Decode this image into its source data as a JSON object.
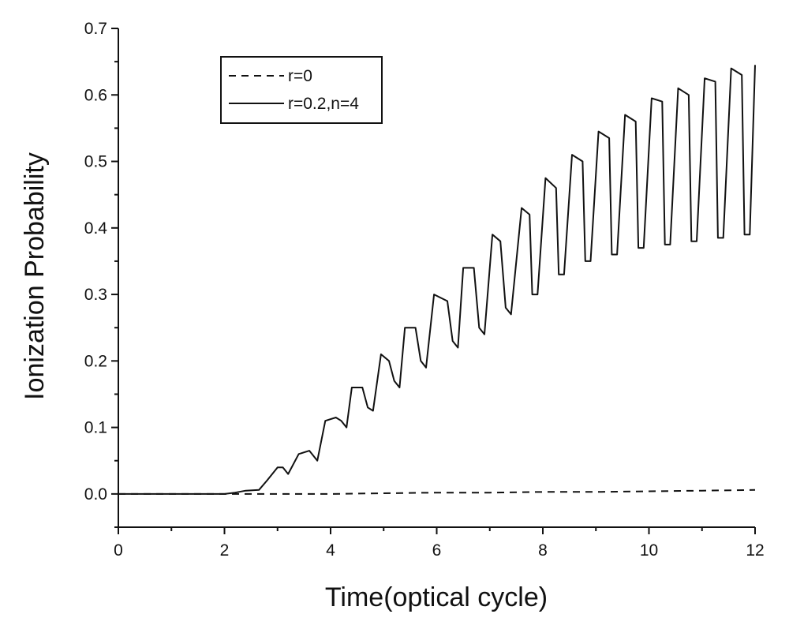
{
  "chart_data": {
    "type": "line",
    "title": "",
    "xlabel": "Time(optical cycle)",
    "ylabel": "Ionization Probability",
    "xlim": [
      0,
      12
    ],
    "ylim": [
      -0.05,
      0.7
    ],
    "xticks": [
      0,
      2,
      4,
      6,
      8,
      10,
      12
    ],
    "yticks": [
      0.0,
      0.1,
      0.2,
      0.3,
      0.4,
      0.5,
      0.6,
      0.7
    ],
    "xtick_labels": [
      "0",
      "2",
      "4",
      "6",
      "8",
      "10",
      "12"
    ],
    "ytick_labels": [
      "0.0",
      "0.1",
      "0.2",
      "0.3",
      "0.4",
      "0.5",
      "0.6",
      "0.7"
    ],
    "grid": false,
    "legend_position": "top-left",
    "series": [
      {
        "name": "r=0",
        "style": "dashed",
        "color": "#111111",
        "x": [
          0,
          2,
          3,
          4,
          5,
          6,
          7,
          8,
          9,
          10,
          11,
          12
        ],
        "y": [
          0.0,
          0.0,
          0.0,
          0.0,
          0.001,
          0.002,
          0.002,
          0.003,
          0.003,
          0.004,
          0.005,
          0.006
        ]
      },
      {
        "name": "r=0.2,n=4",
        "style": "solid",
        "color": "#111111",
        "x": [
          0,
          2.0,
          2.2,
          2.4,
          2.65,
          2.8,
          3.0,
          3.1,
          3.2,
          3.4,
          3.6,
          3.7,
          3.75,
          3.9,
          4.1,
          4.2,
          4.3,
          4.4,
          4.6,
          4.7,
          4.8,
          4.95,
          5.1,
          5.2,
          5.3,
          5.4,
          5.6,
          5.7,
          5.8,
          5.95,
          6.2,
          6.3,
          6.4,
          6.5,
          6.7,
          6.8,
          6.9,
          7.05,
          7.2,
          7.3,
          7.4,
          7.6,
          7.75,
          7.8,
          7.9,
          8.05,
          8.25,
          8.3,
          8.4,
          8.55,
          8.75,
          8.8,
          8.9,
          9.05,
          9.25,
          9.3,
          9.4,
          9.55,
          9.75,
          9.8,
          9.9,
          10.05,
          10.25,
          10.3,
          10.4,
          10.55,
          10.75,
          10.8,
          10.9,
          11.05,
          11.25,
          11.3,
          11.4,
          11.55,
          11.75,
          11.8,
          11.9,
          12.0
        ],
        "y": [
          0.0,
          0.0,
          0.002,
          0.005,
          0.006,
          0.02,
          0.04,
          0.04,
          0.03,
          0.06,
          0.065,
          0.055,
          0.05,
          0.11,
          0.115,
          0.11,
          0.1,
          0.16,
          0.16,
          0.13,
          0.125,
          0.21,
          0.2,
          0.17,
          0.16,
          0.25,
          0.25,
          0.2,
          0.19,
          0.3,
          0.29,
          0.23,
          0.22,
          0.34,
          0.34,
          0.25,
          0.24,
          0.39,
          0.38,
          0.28,
          0.27,
          0.43,
          0.42,
          0.3,
          0.3,
          0.475,
          0.46,
          0.33,
          0.33,
          0.51,
          0.5,
          0.35,
          0.35,
          0.545,
          0.535,
          0.36,
          0.36,
          0.57,
          0.56,
          0.37,
          0.37,
          0.595,
          0.59,
          0.375,
          0.375,
          0.61,
          0.6,
          0.38,
          0.38,
          0.625,
          0.62,
          0.385,
          0.385,
          0.64,
          0.63,
          0.39,
          0.39,
          0.645
        ]
      }
    ]
  }
}
